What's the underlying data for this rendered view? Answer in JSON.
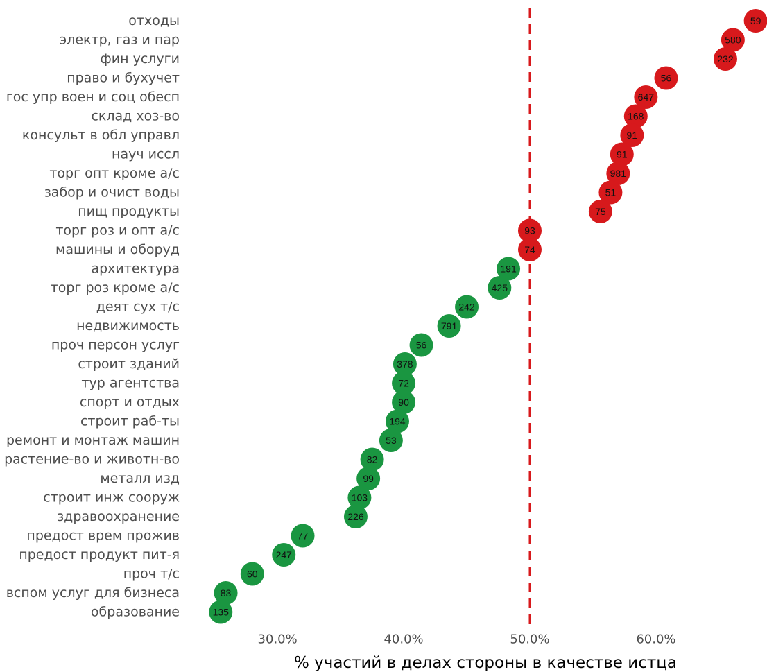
{
  "chart_data": {
    "type": "scatter",
    "xlabel": "% участий в делах стороны в качестве истца",
    "xlim": [
      24.0,
      68.8
    ],
    "xticks": [
      30,
      40,
      50,
      60
    ],
    "xtick_labels": [
      "30.0%",
      "40.0%",
      "50.0%",
      "60.0%"
    ],
    "reference_line": 50,
    "colors": {
      "above": "#d7191c",
      "below": "#1a9641",
      "reference_line": "#d7191c"
    },
    "categories": [
      "отходы",
      "электр, газ и пар",
      "фин услуги",
      "право и бухучет",
      "гос упр воен и соц обесп",
      "склад хоз-во",
      "консульт в обл управл",
      "науч иссл",
      "торг опт кроме а/с",
      "забор и очист воды",
      "пищ продукты",
      "торг роз и опт а/с",
      "машины и оборуд",
      "архитектура",
      "торг роз кроме а/с",
      "деят сух т/с",
      "недвижимость",
      "проч персон услуг",
      "строит зданий",
      "тур агентства",
      "спорт и отдых",
      "строит раб-ты",
      "ремонт и монтаж машин",
      "растение-во и животн-во",
      "металл изд",
      "строит инж сооруж",
      "здравоохранение",
      "предост врем прожив",
      "предост продукт пит-я",
      "проч т/с",
      "вспом услуг для бизнеса",
      "образование"
    ],
    "values": [
      67.9,
      66.1,
      65.5,
      60.8,
      59.2,
      58.4,
      58.1,
      57.3,
      57.0,
      56.4,
      55.6,
      50.0,
      50.0,
      48.3,
      47.6,
      45.0,
      43.6,
      41.4,
      40.1,
      40.0,
      40.0,
      39.5,
      39.0,
      37.5,
      37.2,
      36.5,
      36.2,
      32.0,
      30.5,
      28.0,
      25.9,
      25.5
    ],
    "counts": [
      "59",
      "580",
      "232",
      "56",
      "647",
      "168",
      "91",
      "91",
      "981",
      "51",
      "75",
      "93",
      "74",
      "191",
      "425",
      "242",
      "791",
      "56",
      "378",
      "72",
      "90",
      "194",
      "53",
      "82",
      "99",
      "103",
      "226",
      "77",
      "247",
      "60",
      "83",
      "135"
    ]
  }
}
